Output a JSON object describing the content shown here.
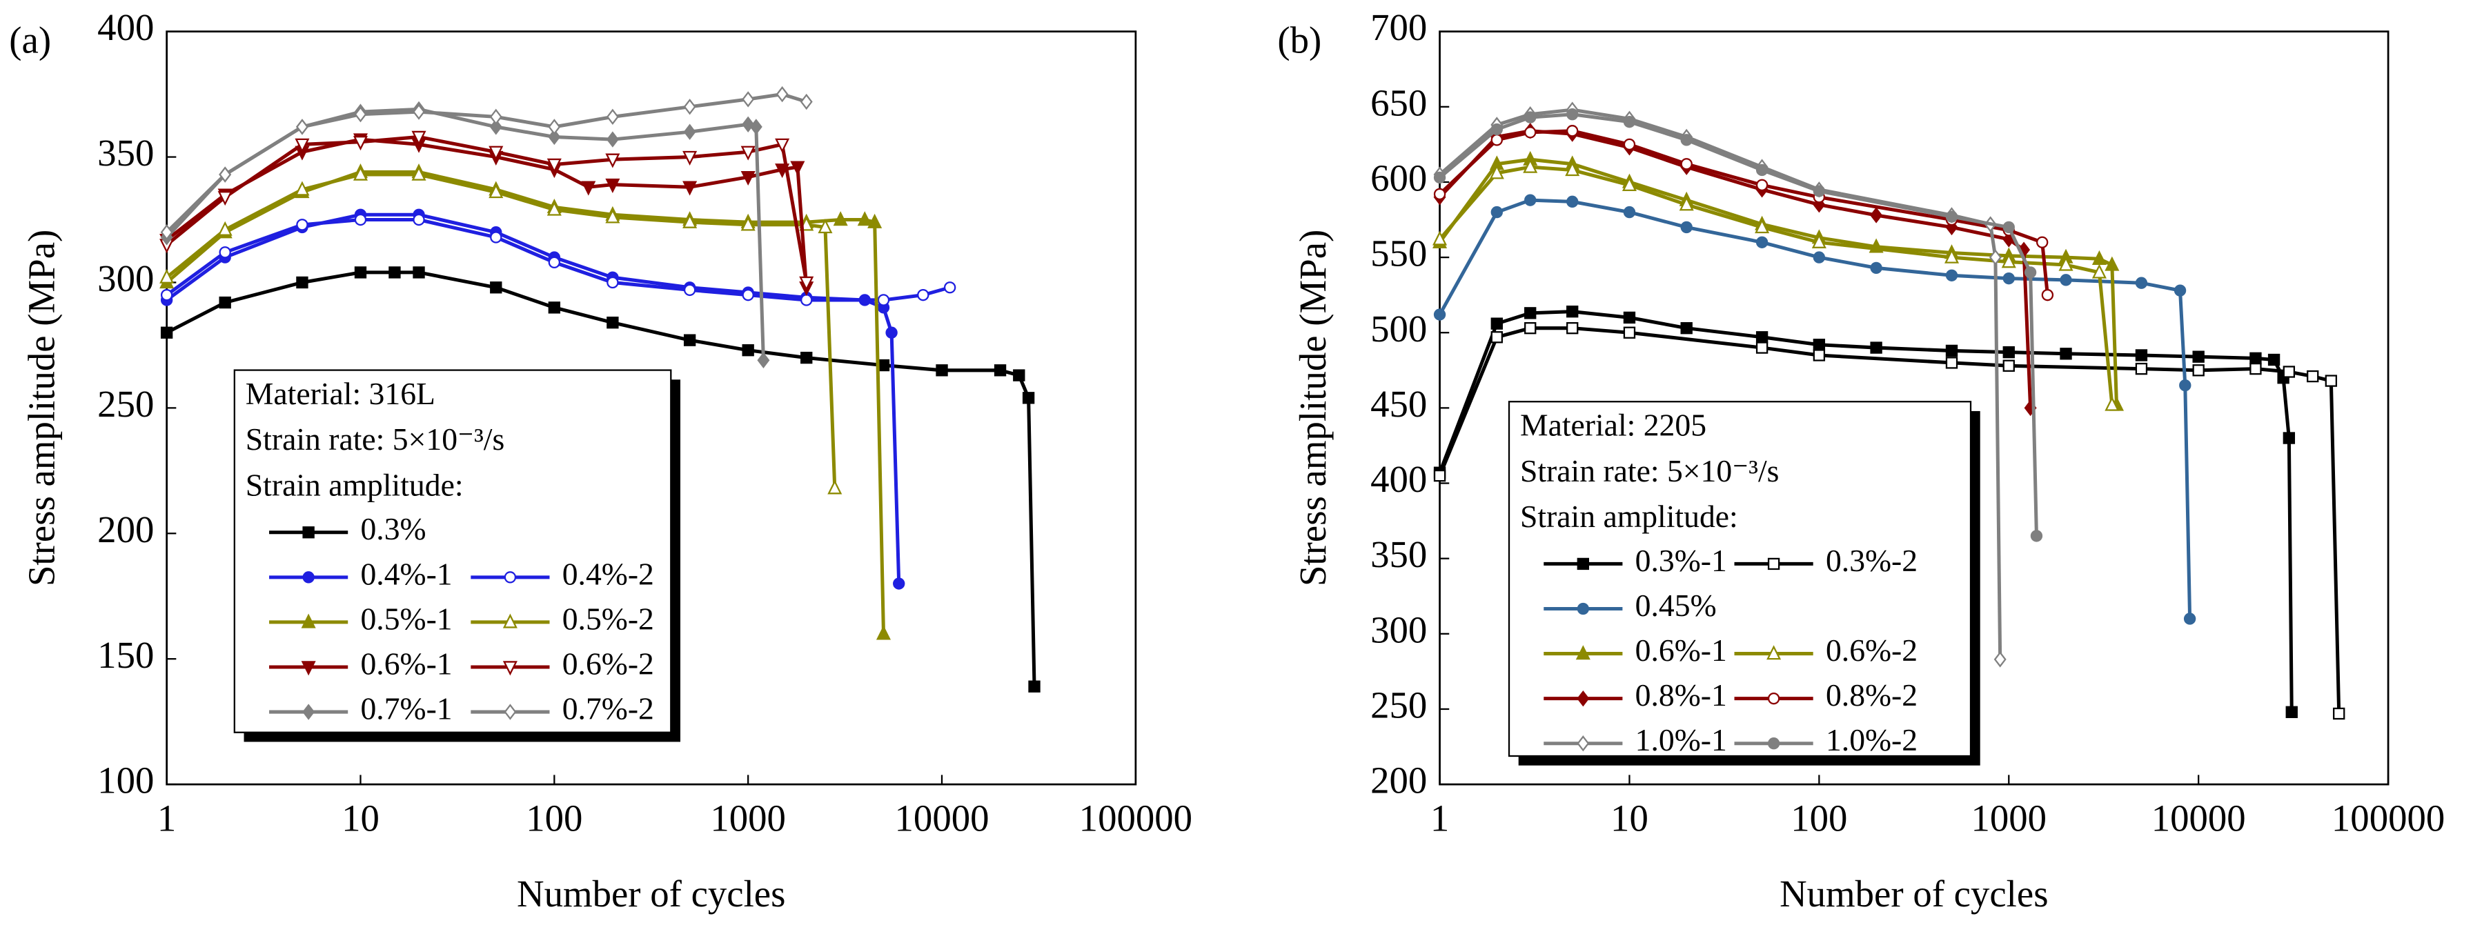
{
  "chart_data": [
    {
      "type": "line",
      "label": "(a)",
      "xlabel": "Number of cycles",
      "ylabel": "Stress amplitude (MPa)",
      "xscale": "log",
      "xlim": [
        1,
        100000
      ],
      "xticks": [
        1,
        10,
        100,
        1000,
        10000,
        100000
      ],
      "ylim": [
        100,
        400
      ],
      "yticks": [
        100,
        150,
        200,
        250,
        300,
        350,
        400
      ],
      "legend_title": [
        "Material: 316L",
        "Strain rate: 5×10⁻³/s",
        "Strain amplitude:"
      ],
      "series": [
        {
          "name": "0.3%",
          "color": "#000000",
          "marker": "square",
          "filled": true,
          "x": [
            1,
            2,
            5,
            10,
            15,
            20,
            50,
            100,
            200,
            500,
            1000,
            2000,
            5000,
            10000,
            20000,
            25000,
            28000,
            30000
          ],
          "values": [
            280,
            292,
            300,
            304,
            304,
            304,
            298,
            290,
            284,
            277,
            273,
            270,
            267,
            265,
            265,
            263,
            254,
            139
          ]
        },
        {
          "name": "0.4%-1",
          "color": "#1f1fe0",
          "marker": "circle",
          "filled": true,
          "x": [
            1,
            2,
            5,
            10,
            20,
            50,
            100,
            200,
            500,
            1000,
            2000,
            4000,
            5000,
            5500,
            6000
          ],
          "values": [
            293,
            310,
            322,
            327,
            327,
            320,
            310,
            302,
            298,
            296,
            294,
            293,
            290,
            280,
            180
          ]
        },
        {
          "name": "0.4%-2",
          "color": "#1f1fe0",
          "marker": "circle",
          "filled": false,
          "x": [
            1,
            2,
            5,
            10,
            20,
            50,
            100,
            200,
            500,
            1000,
            2000,
            5000,
            8000,
            11000
          ],
          "values": [
            295,
            312,
            323,
            325,
            325,
            318,
            308,
            300,
            297,
            295,
            293,
            293,
            295,
            298
          ]
        },
        {
          "name": "0.5%-1",
          "color": "#8c8a00",
          "marker": "triangle",
          "filled": true,
          "x": [
            1,
            2,
            5,
            10,
            20,
            50,
            100,
            200,
            500,
            1000,
            2000,
            3000,
            4000,
            4500,
            5000
          ],
          "values": [
            300,
            320,
            336,
            344,
            344,
            337,
            330,
            327,
            325,
            324,
            324,
            325,
            325,
            324,
            160
          ]
        },
        {
          "name": "0.5%-2",
          "color": "#8c8a00",
          "marker": "triangle",
          "filled": false,
          "x": [
            1,
            2,
            5,
            10,
            20,
            50,
            100,
            200,
            500,
            1000,
            2000,
            2500,
            2800
          ],
          "values": [
            302,
            321,
            337,
            343,
            343,
            336,
            329,
            326,
            324,
            323,
            323,
            322,
            218
          ]
        },
        {
          "name": "0.6%-1",
          "color": "#8b0000",
          "marker": "triangle-down",
          "filled": true,
          "x": [
            1,
            2,
            5,
            10,
            20,
            50,
            100,
            150,
            200,
            500,
            1000,
            1500,
            1800,
            2000
          ],
          "values": [
            317,
            335,
            352,
            357,
            355,
            350,
            345,
            338,
            339,
            338,
            342,
            345,
            346,
            298
          ]
        },
        {
          "name": "0.6%-2",
          "color": "#8b0000",
          "marker": "triangle-down",
          "filled": false,
          "x": [
            1,
            2,
            5,
            10,
            20,
            50,
            100,
            200,
            500,
            1000,
            1500,
            2000
          ],
          "values": [
            315,
            334,
            355,
            356,
            358,
            352,
            347,
            349,
            350,
            352,
            355,
            300
          ]
        },
        {
          "name": "0.7%-1",
          "color": "#808080",
          "marker": "diamond",
          "filled": true,
          "x": [
            1,
            2,
            5,
            10,
            20,
            50,
            100,
            200,
            500,
            1000,
            1100,
            1200
          ],
          "values": [
            318,
            343,
            362,
            368,
            369,
            362,
            358,
            357,
            360,
            363,
            362,
            269
          ]
        },
        {
          "name": "0.7%-2",
          "color": "#808080",
          "marker": "diamond",
          "filled": false,
          "x": [
            1,
            2,
            5,
            10,
            20,
            50,
            100,
            200,
            500,
            1000,
            1500,
            2000
          ],
          "values": [
            320,
            343,
            362,
            367,
            368,
            366,
            362,
            366,
            370,
            373,
            375,
            372
          ]
        }
      ]
    },
    {
      "type": "line",
      "label": "(b)",
      "xlabel": "Number of cycles",
      "ylabel": "Stress amplitude (MPa)",
      "xscale": "log",
      "xlim": [
        1,
        100000
      ],
      "xticks": [
        1,
        10,
        100,
        1000,
        10000,
        100000
      ],
      "ylim": [
        200,
        700
      ],
      "yticks": [
        200,
        250,
        300,
        350,
        400,
        450,
        500,
        550,
        600,
        650,
        700
      ],
      "legend_title": [
        "Material: 2205",
        "Strain rate: 5×10⁻³/s",
        "Strain amplitude:"
      ],
      "series": [
        {
          "name": "0.3%-1",
          "color": "#000000",
          "marker": "square",
          "filled": true,
          "x": [
            1,
            2,
            3,
            5,
            10,
            20,
            50,
            100,
            200,
            500,
            1000,
            2000,
            5000,
            10000,
            20000,
            25000,
            28000,
            30000,
            31000
          ],
          "values": [
            407,
            506,
            513,
            514,
            510,
            503,
            497,
            492,
            490,
            488,
            487,
            486,
            485,
            484,
            483,
            482,
            470,
            430,
            248
          ]
        },
        {
          "name": "0.3%-2",
          "color": "#000000",
          "marker": "square",
          "filled": false,
          "x": [
            1,
            2,
            3,
            5,
            10,
            50,
            100,
            500,
            1000,
            5000,
            10000,
            20000,
            30000,
            40000,
            50000,
            55000
          ],
          "values": [
            405,
            497,
            503,
            503,
            500,
            490,
            485,
            480,
            478,
            476,
            475,
            476,
            474,
            471,
            468,
            247
          ]
        },
        {
          "name": "0.45%",
          "color": "#336699",
          "marker": "circle",
          "filled": true,
          "x": [
            1,
            2,
            3,
            5,
            10,
            20,
            50,
            100,
            200,
            500,
            1000,
            2000,
            5000,
            8000,
            8500,
            9000
          ],
          "values": [
            512,
            580,
            588,
            587,
            580,
            570,
            560,
            550,
            543,
            538,
            536,
            535,
            533,
            528,
            465,
            310
          ]
        },
        {
          "name": "0.6%-1",
          "color": "#8c8a00",
          "marker": "triangle",
          "filled": true,
          "x": [
            1,
            2,
            3,
            5,
            10,
            20,
            50,
            100,
            200,
            500,
            1000,
            2000,
            3000,
            3500,
            3700
          ],
          "values": [
            560,
            612,
            615,
            612,
            600,
            588,
            572,
            563,
            557,
            553,
            551,
            550,
            549,
            545,
            452
          ]
        },
        {
          "name": "0.6%-2",
          "color": "#8c8a00",
          "marker": "triangle",
          "filled": false,
          "x": [
            1,
            2,
            3,
            5,
            10,
            20,
            50,
            100,
            500,
            1000,
            2000,
            3000,
            3500
          ],
          "values": [
            562,
            606,
            610,
            608,
            598,
            585,
            570,
            560,
            550,
            547,
            545,
            540,
            452
          ]
        },
        {
          "name": "0.8%-1",
          "color": "#8b0000",
          "marker": "diamond",
          "filled": true,
          "x": [
            1,
            2,
            3,
            5,
            10,
            20,
            50,
            100,
            200,
            500,
            1000,
            1200,
            1300
          ],
          "values": [
            590,
            630,
            634,
            632,
            623,
            610,
            595,
            585,
            578,
            570,
            562,
            555,
            450
          ]
        },
        {
          "name": "0.8%-2",
          "color": "#8b0000",
          "marker": "circle",
          "filled": false,
          "x": [
            1,
            2,
            3,
            5,
            10,
            20,
            50,
            100,
            500,
            1000,
            1500,
            1600
          ],
          "values": [
            592,
            628,
            633,
            634,
            625,
            612,
            598,
            590,
            575,
            568,
            560,
            525
          ]
        },
        {
          "name": "1.0%-1",
          "color": "#808080",
          "marker": "diamond",
          "filled": false,
          "x": [
            1,
            2,
            3,
            5,
            10,
            20,
            50,
            100,
            500,
            800,
            850,
            900
          ],
          "values": [
            605,
            638,
            645,
            648,
            642,
            630,
            610,
            595,
            578,
            572,
            550,
            283
          ]
        },
        {
          "name": "1.0%-2",
          "color": "#808080",
          "marker": "circle",
          "filled": true,
          "x": [
            1,
            2,
            3,
            5,
            10,
            20,
            50,
            100,
            500,
            1000,
            1300,
            1400
          ],
          "values": [
            603,
            635,
            643,
            645,
            640,
            628,
            608,
            594,
            577,
            570,
            540,
            365
          ]
        }
      ]
    }
  ]
}
